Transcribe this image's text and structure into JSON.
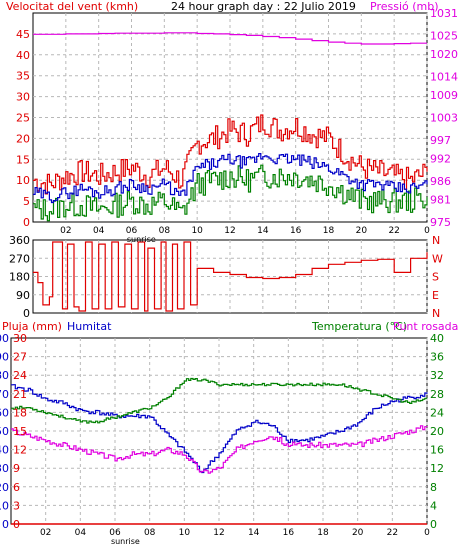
{
  "chart_data": [
    {
      "type": "line",
      "title": "24 hour graph day : 22 Julio 2019",
      "left_axis_label": "Velocitat del vent (kmh)",
      "right_axis_label": "Pressió (mb)",
      "x_ticks": [
        "02",
        "04",
        "06",
        "08",
        "10",
        "12",
        "14",
        "16",
        "18",
        "20",
        "22",
        "0"
      ],
      "x_annotation": "sunrise",
      "left_ticks": [
        0,
        5,
        10,
        15,
        20,
        25,
        30,
        35,
        40,
        45
      ],
      "right_ticks": [
        975,
        981,
        986,
        992,
        997,
        1003,
        1009,
        1014,
        1020,
        1025,
        1031
      ],
      "ylim_left": [
        0,
        50
      ],
      "ylim_right": [
        975,
        1031
      ],
      "grid": true,
      "colors": {
        "gust": "#e00000",
        "avg": "#0000c8",
        "min": "#008000",
        "pressure": "#e000e0",
        "left_axis": "#e00000",
        "right_axis": "#e000e0"
      },
      "hours": [
        0,
        1,
        2,
        3,
        4,
        5,
        6,
        7,
        8,
        9,
        10,
        11,
        12,
        13,
        14,
        15,
        16,
        17,
        18,
        19,
        20,
        21,
        22,
        23,
        24
      ],
      "series": {
        "gust": [
          10,
          9,
          11,
          12,
          11,
          12,
          13,
          11,
          13,
          10,
          19,
          20,
          22,
          21,
          24,
          22,
          23,
          21,
          20,
          16,
          13,
          12,
          11,
          10,
          12
        ],
        "avg": [
          7,
          6,
          7,
          8,
          7,
          8,
          9,
          8,
          9,
          6,
          13,
          14,
          15,
          14,
          16,
          15,
          15,
          14,
          13,
          11,
          9,
          9,
          8,
          8,
          9
        ],
        "min": [
          3,
          3,
          4,
          4,
          3,
          4,
          5,
          4,
          5,
          2,
          9,
          10,
          11,
          10,
          11,
          11,
          11,
          10,
          9,
          7,
          5,
          5,
          5,
          5,
          6
        ],
        "pressure": [
          1025.3,
          1025.3,
          1025.4,
          1025.4,
          1025.5,
          1025.6,
          1025.6,
          1025.6,
          1025.7,
          1025.7,
          1025.5,
          1025.4,
          1025.2,
          1025.0,
          1024.7,
          1024.4,
          1024.0,
          1023.6,
          1023.2,
          1022.9,
          1022.7,
          1022.7,
          1022.8,
          1022.9,
          1022.9
        ]
      }
    },
    {
      "type": "line",
      "left_ticks": [
        0,
        90,
        180,
        270,
        360
      ],
      "right_labels": [
        "N",
        "W",
        "S",
        "E",
        "N"
      ],
      "ylim": [
        0,
        360
      ],
      "color": "#e00000",
      "hours": [
        0,
        0.3,
        0.6,
        1.0,
        1.2,
        1.8,
        2.1,
        2.5,
        2.8,
        3.2,
        3.6,
        4.0,
        4.4,
        4.8,
        5.2,
        5.6,
        6.0,
        6.4,
        6.8,
        7.0,
        7.4,
        7.8,
        8.1,
        8.5,
        8.8,
        9.2,
        9.6,
        10,
        11,
        12,
        13,
        14,
        15,
        16,
        17,
        18,
        19,
        20,
        21,
        22,
        23,
        24
      ],
      "direction": [
        200,
        150,
        40,
        80,
        350,
        20,
        340,
        30,
        10,
        350,
        20,
        340,
        20,
        350,
        30,
        340,
        20,
        350,
        10,
        320,
        20,
        350,
        10,
        340,
        20,
        350,
        40,
        220,
        200,
        190,
        175,
        170,
        175,
        190,
        220,
        240,
        250,
        260,
        265,
        200,
        270,
        300
      ]
    },
    {
      "type": "line",
      "left_axis_label": "Pluja (mm)",
      "left_axis2_label": "Humitat",
      "right_axis_label": "Temperatura (°C)",
      "right_axis2_label": "Punt rosada",
      "left_ticks_rain": [
        0,
        3,
        6,
        9,
        12,
        15,
        18,
        21,
        24,
        27,
        30
      ],
      "left_ticks_humidity": [
        0,
        10,
        20,
        30,
        40,
        50,
        60,
        70,
        80,
        90,
        100
      ],
      "right_ticks": [
        0,
        4,
        8,
        12,
        16,
        20,
        24,
        28,
        32,
        36,
        40
      ],
      "ylim_rain": [
        0,
        30
      ],
      "ylim_humidity": [
        0,
        100
      ],
      "ylim_temp": [
        0,
        40
      ],
      "colors": {
        "humidity": "#0000c8",
        "temperature": "#008000",
        "dewpoint": "#e000e0",
        "rain": "#e00000",
        "left_rain_axis": "#e00000",
        "left_humidity_axis": "#0000c8",
        "right_temp_axis": "#008000",
        "right_dew_axis": "#e000e0"
      },
      "hours": [
        0,
        1,
        2,
        3,
        4,
        5,
        6,
        7,
        8,
        9,
        10,
        11,
        12,
        13,
        14,
        15,
        16,
        17,
        18,
        19,
        20,
        21,
        22,
        23,
        24
      ],
      "series": {
        "humidity": [
          74,
          72,
          67,
          65,
          61,
          60,
          58,
          58,
          58,
          48,
          39,
          28,
          38,
          50,
          55,
          53,
          45,
          45,
          47,
          50,
          54,
          62,
          66,
          68,
          70
        ],
        "temperature": [
          25,
          25,
          24,
          23,
          22,
          22,
          23,
          24,
          25,
          27,
          31,
          31,
          30,
          30,
          30,
          30,
          30,
          30,
          30,
          30,
          29,
          28,
          27,
          26,
          27
        ],
        "dewpoint": [
          20,
          19,
          18,
          17,
          16,
          15,
          14,
          15,
          15,
          16,
          15,
          11,
          12,
          16,
          18,
          19,
          17,
          17,
          17,
          17,
          17,
          18,
          19,
          20,
          21
        ],
        "rain": [
          0,
          0,
          0,
          0,
          0,
          0,
          0,
          0,
          0,
          0,
          0,
          0,
          0,
          0,
          0,
          0,
          0,
          0,
          0,
          0,
          0,
          0,
          0,
          0,
          0
        ]
      },
      "x_ticks": [
        "02",
        "04",
        "06",
        "08",
        "10",
        "12",
        "14",
        "16",
        "18",
        "20",
        "22",
        "0"
      ],
      "x_annotation": "sunrise"
    }
  ]
}
